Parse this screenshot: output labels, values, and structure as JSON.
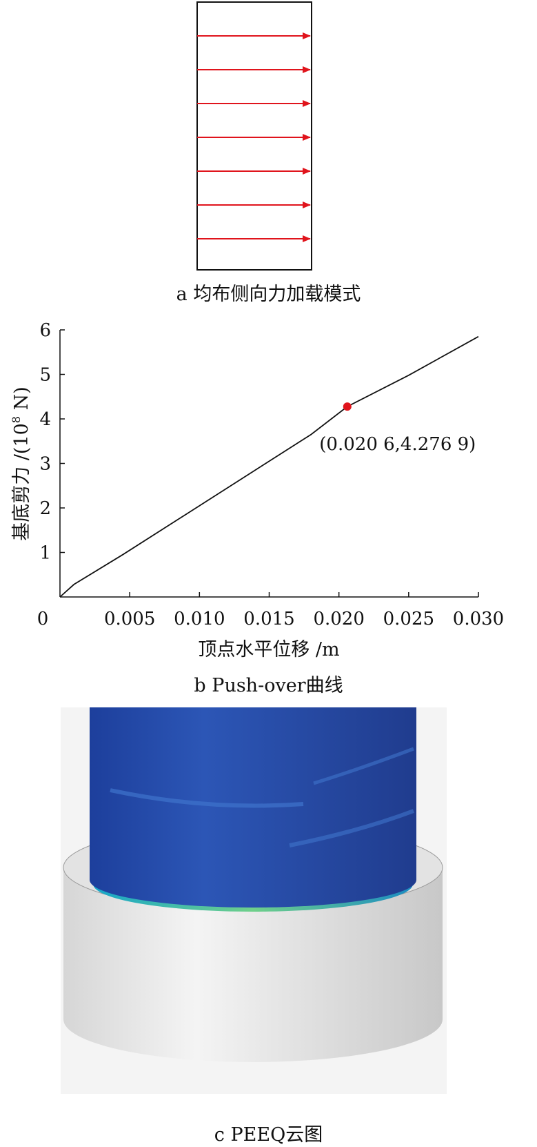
{
  "panel_a": {
    "caption": "a 均布侧向力加载模式",
    "arrow_count": 7,
    "arrow_color": "#e0141c"
  },
  "panel_b": {
    "caption": "b Push-over曲线"
  },
  "panel_c": {
    "caption": "c PEEQ云图",
    "column_color": "#2a4fa8",
    "base_color": "#e6e6e6"
  },
  "chart_data": {
    "type": "line",
    "title": "",
    "xlabel": "顶点水平位移 /m",
    "ylabel_main": "基底剪力 /(10",
    "ylabel_sup": "8",
    "ylabel_tail": " N)",
    "xlim": [
      0,
      0.03
    ],
    "ylim": [
      0,
      6
    ],
    "x_ticks": [
      0,
      0.005,
      0.01,
      0.015,
      0.02,
      0.025,
      0.03
    ],
    "x_tick_labels": [
      "0",
      "0.005",
      "0.010",
      "0.015",
      "0.020",
      "0.025",
      "0.030"
    ],
    "y_ticks": [
      1,
      2,
      3,
      4,
      5,
      6
    ],
    "y_tick_labels": [
      "1",
      "2",
      "3",
      "4",
      "5",
      "6"
    ],
    "grid": false,
    "series": [
      {
        "color": "#111111",
        "x": [
          0,
          0.001,
          0.0045,
          0.009,
          0.0135,
          0.018,
          0.0206,
          0.025,
          0.03
        ],
        "y": [
          0,
          0.28,
          0.95,
          1.85,
          2.75,
          3.65,
          4.2769,
          4.98,
          5.85
        ]
      }
    ],
    "highlight_point": {
      "x": 0.0206,
      "y": 4.2769,
      "label": "(0.020 6,4.276 9)",
      "color": "#e0141c"
    }
  }
}
